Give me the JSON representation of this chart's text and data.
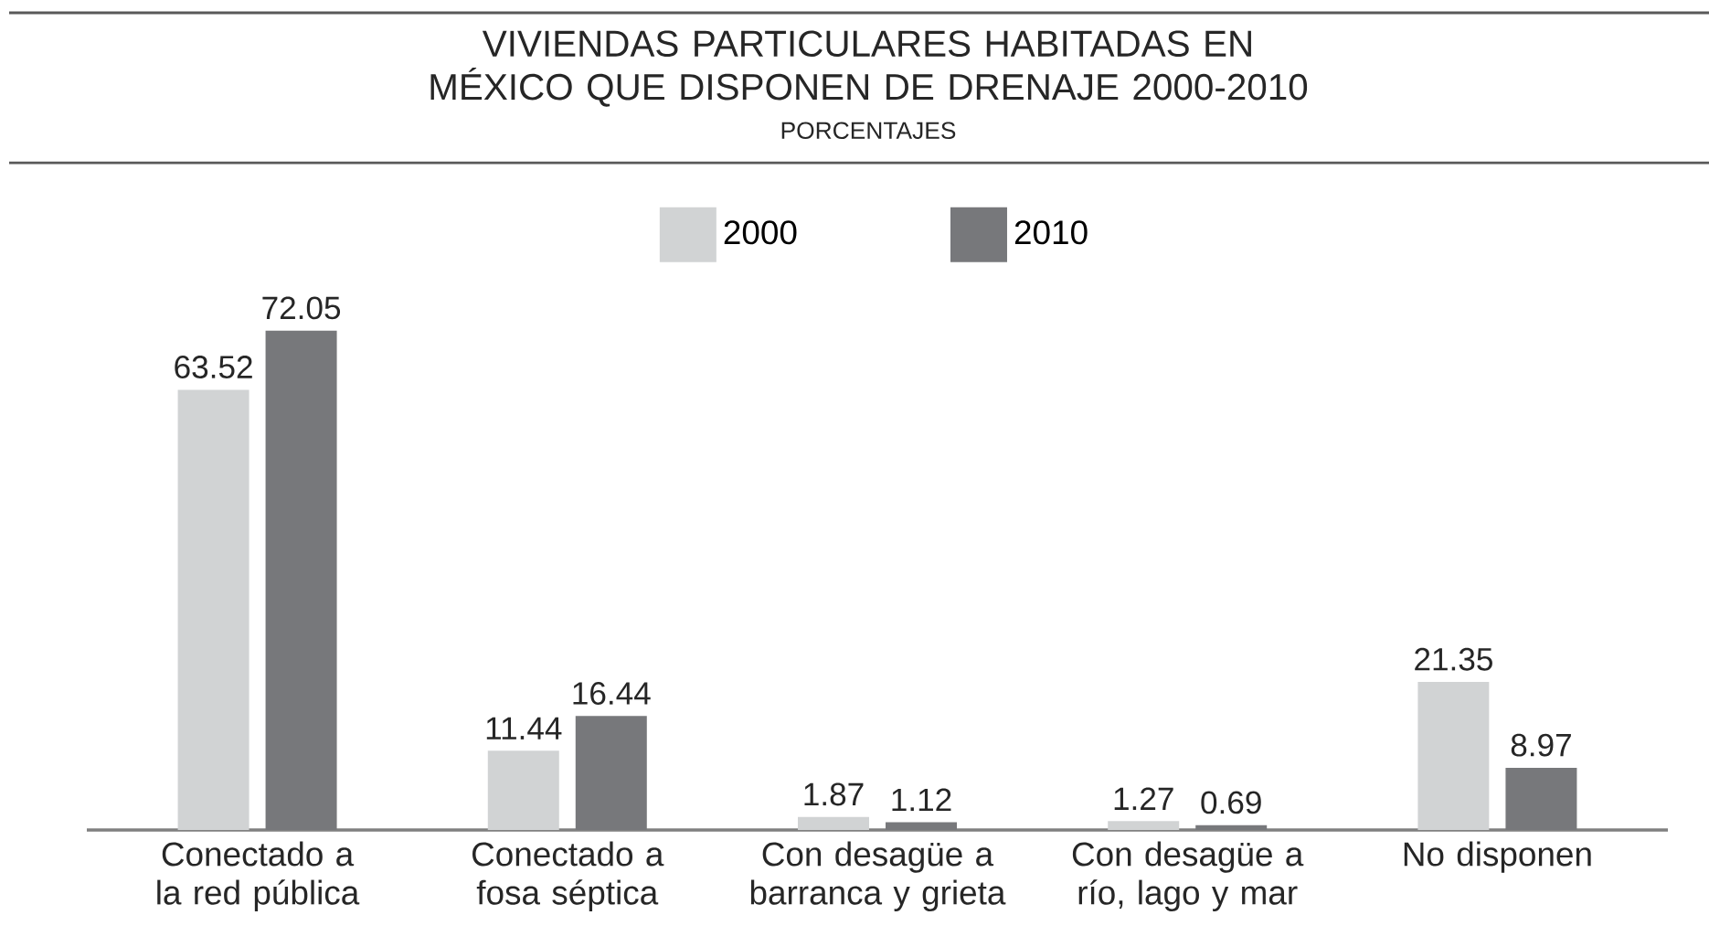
{
  "chart_data": {
    "type": "bar",
    "title": "VIVIENDAS PARTICULARES HABITADAS EN MÉXICO QUE DISPONEN DE DRENAJE 2000-2010",
    "subtitle": "PORCENTAJES",
    "categories": [
      "Conectado a la red pública",
      "Conectado a fosa séptica",
      "Con desagüe a barranca y grieta",
      "Con desagüe a río, lago y mar",
      "No disponen"
    ],
    "series": [
      {
        "name": "2000",
        "color": "#d1d3d4",
        "values": [
          63.52,
          11.44,
          1.87,
          1.27,
          21.35
        ]
      },
      {
        "name": "2010",
        "color": "#77787b",
        "values": [
          72.05,
          16.44,
          1.12,
          0.69,
          8.97
        ]
      }
    ],
    "data_labels": true,
    "legend": "top"
  }
}
